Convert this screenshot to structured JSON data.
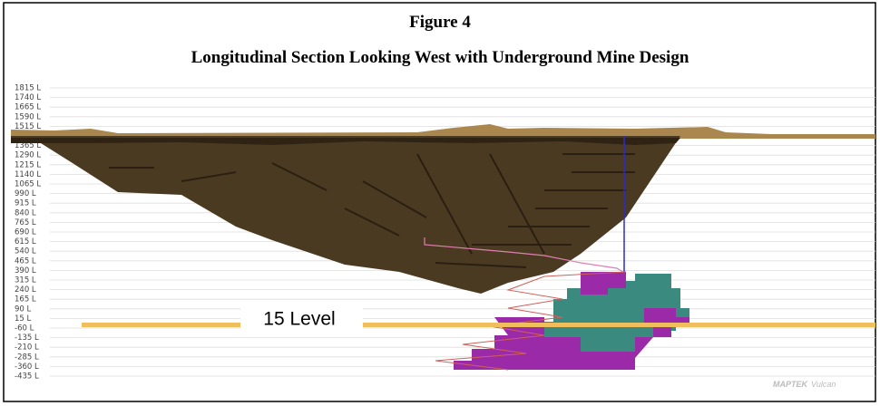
{
  "figure": {
    "title": "Figure 4",
    "subtitle": "Longitudinal Section Looking West with Underground Mine Design",
    "levels": [
      "1815 L",
      "1740 L",
      "1665 L",
      "1590 L",
      "1515 L",
      "1365 L",
      "1290 L",
      "1215 L",
      "1140 L",
      "1065 L",
      "990 L",
      "915 L",
      "840 L",
      "765 L",
      "690 L",
      "615 L",
      "540 L",
      "465 L",
      "390 L",
      "315 L",
      "240 L",
      "165 L",
      "90 L",
      "15 L",
      "-60 L",
      "-135 L",
      "-210 L",
      "-285 L",
      "-360 L",
      "-435 L"
    ],
    "annotation": "15 Level",
    "watermark": {
      "brand": "MAPTEK",
      "product": "Vulcan"
    }
  }
}
